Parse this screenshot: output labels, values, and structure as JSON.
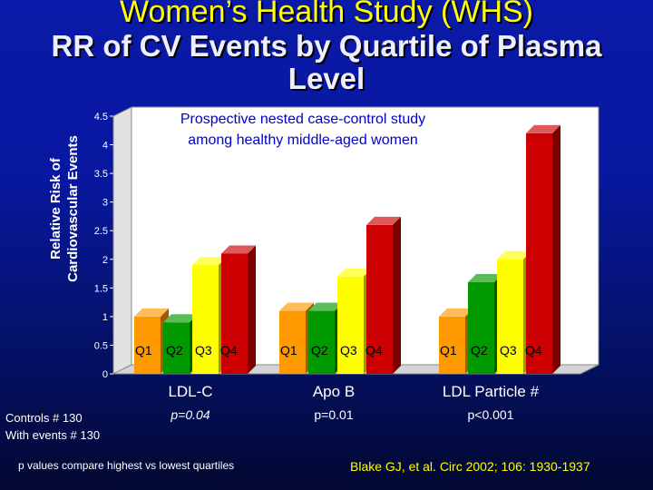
{
  "title_line1": "Women’s Health Study (WHS)",
  "title_line2a": "RR of CV Events by Quartile of Plasma",
  "title_line2b": "Level",
  "chart_data": {
    "type": "bar",
    "ylabel": "Relative Risk of Cardiovascular Events",
    "ylabel_line1": "Relative Risk of",
    "ylabel_line2": "Cardiovascular Events",
    "ylim": [
      0,
      4.5
    ],
    "yticks": [
      "0",
      "0.5",
      "1",
      "1.5",
      "2",
      "2.5",
      "3",
      "3.5",
      "4",
      "4.5"
    ],
    "annotation_line1": "Prospective nested case-control study",
    "annotation_line2": "among healthy middle-aged women",
    "quartile_labels": [
      "Q1",
      "Q2",
      "Q3",
      "Q4"
    ],
    "quartile_colors": [
      "#ff9900",
      "#009900",
      "#ffff00",
      "#cc0000"
    ],
    "groups": [
      {
        "name": "LDL-C",
        "p_value": "p=0.04",
        "values": [
          1.0,
          0.9,
          1.9,
          2.1
        ]
      },
      {
        "name": "Apo B",
        "p_value": "p=0.01",
        "values": [
          1.1,
          1.1,
          1.7,
          2.6
        ]
      },
      {
        "name": "LDL Particle #",
        "p_value": "p<0.001",
        "values": [
          1.0,
          1.6,
          2.0,
          4.2
        ]
      }
    ]
  },
  "controls_line1": "Controls # 130",
  "controls_line2": "With events # 130",
  "footnote": "p values compare highest vs lowest quartiles",
  "citation": "Blake GJ, et al. Circ 2002; 106: 1930-1937"
}
